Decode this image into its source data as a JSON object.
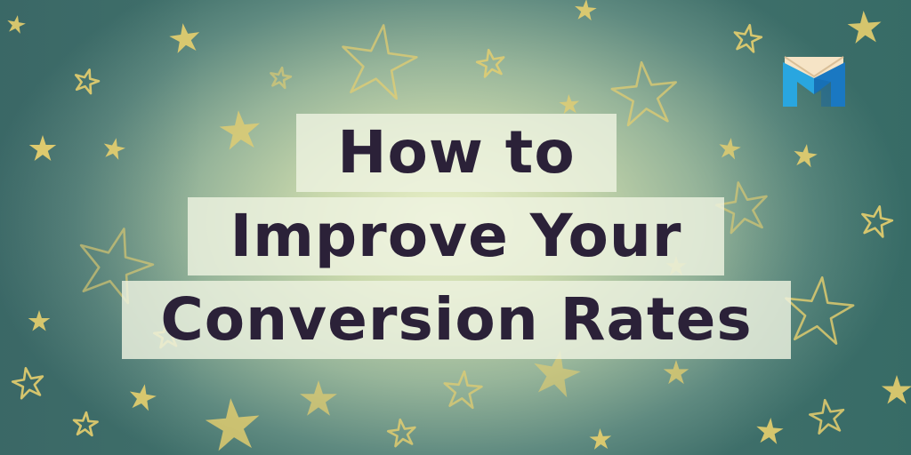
{
  "title": {
    "line1": "How to",
    "line2": "Improve Your",
    "line3": "Conversion Rates"
  },
  "logo": {
    "icon": "envelope-m-logo",
    "colors": {
      "blue_light": "#29a6e0",
      "blue_dark": "#1a78c2",
      "envelope": "#f6e4c6"
    }
  },
  "colors": {
    "background_center": "#edf3cc",
    "background_edge": "#3f6f6a",
    "star": "#e7cf6e",
    "title_text": "#2b2138",
    "title_box": "#eef3e0"
  }
}
